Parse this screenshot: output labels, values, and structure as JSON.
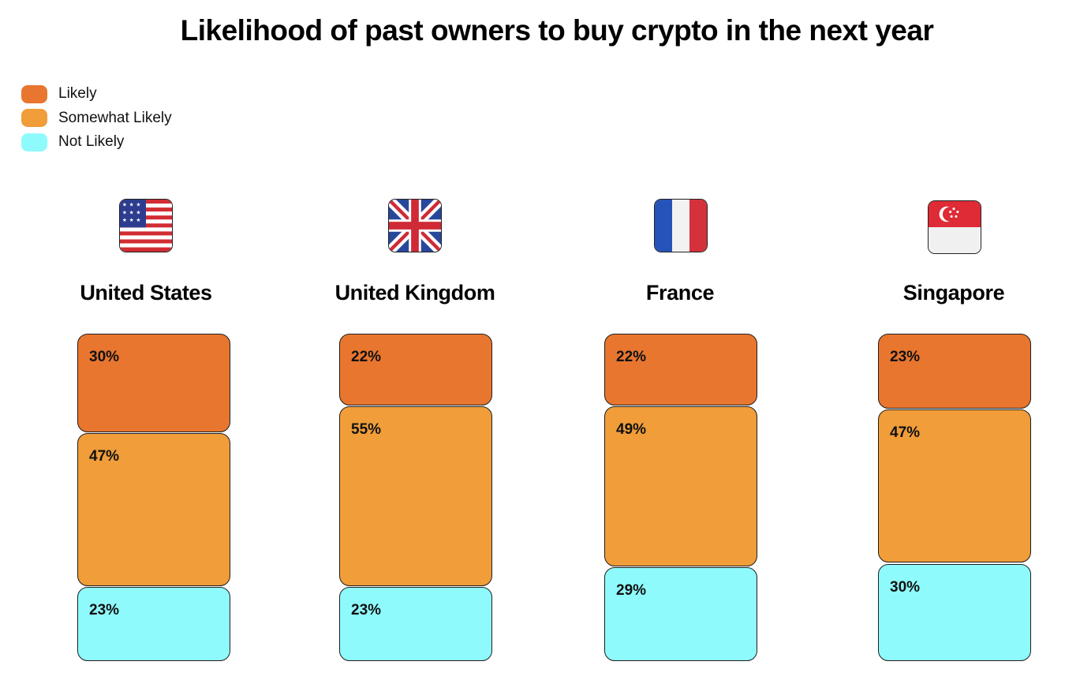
{
  "colors": {
    "Likely": "#e8762f",
    "Somewhat Likely": "#f09d3a",
    "Not Likely": "#8ffafc"
  },
  "chart_data": {
    "type": "bar",
    "stacked": true,
    "title": "Likelihood of past owners to buy crypto in the next year",
    "categories": [
      "United States",
      "United Kingdom",
      "France",
      "Singapore"
    ],
    "series": [
      {
        "name": "Likely",
        "values": [
          30,
          22,
          22,
          23
        ],
        "labels": [
          "30%",
          "22%",
          "22%",
          "23%"
        ]
      },
      {
        "name": "Somewhat Likely",
        "values": [
          47,
          55,
          49,
          47
        ],
        "labels": [
          "47%",
          "55%",
          "49%",
          "47%"
        ]
      },
      {
        "name": "Not Likely",
        "values": [
          23,
          23,
          29,
          30
        ],
        "labels": [
          "23%",
          "23%",
          "29%",
          "30%"
        ]
      }
    ],
    "legend_position": "top-left",
    "unit": "%"
  },
  "countries": [
    {
      "name": "United States",
      "flag": "us-flag-icon"
    },
    {
      "name": "United Kingdom",
      "flag": "uk-flag-icon"
    },
    {
      "name": "France",
      "flag": "france-flag-icon"
    },
    {
      "name": "Singapore",
      "flag": "singapore-flag-icon"
    }
  ]
}
